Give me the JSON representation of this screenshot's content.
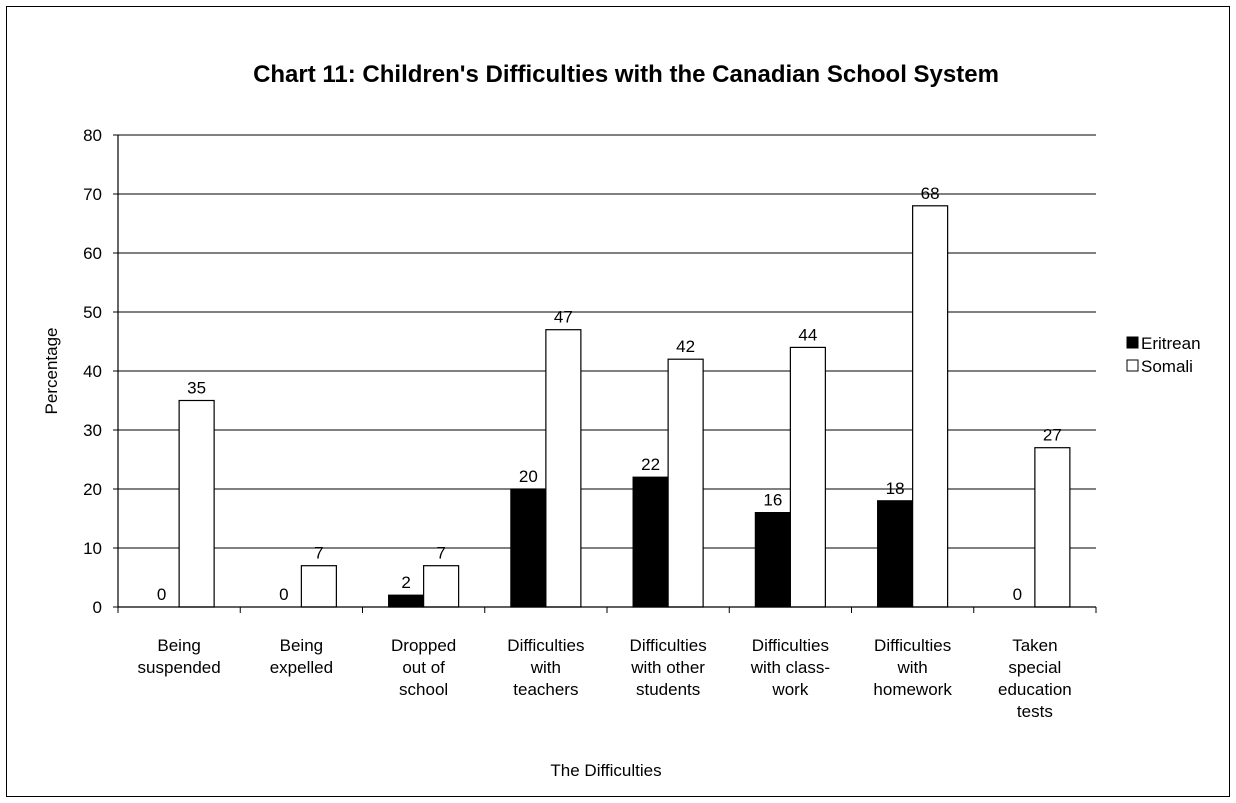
{
  "chart_data": {
    "type": "bar",
    "title": "Chart 11: Children's Difficulties with the Canadian School System",
    "xlabel": "The Difficulties",
    "ylabel": "Percentage",
    "ylim": [
      0,
      80
    ],
    "yticks": [
      0,
      10,
      20,
      30,
      40,
      50,
      60,
      70,
      80
    ],
    "grid": true,
    "legend_position": "right",
    "categories": [
      [
        "Being",
        "suspended"
      ],
      [
        "Being",
        "expelled"
      ],
      [
        "Dropped",
        "out of",
        "school"
      ],
      [
        "Difficulties",
        "with",
        "teachers"
      ],
      [
        "Difficulties",
        "with other",
        "students"
      ],
      [
        "Difficulties",
        "with class-",
        "work"
      ],
      [
        "Difficulties",
        "with",
        "homework"
      ],
      [
        "Taken",
        "special",
        "education",
        "tests"
      ]
    ],
    "series": [
      {
        "name": "Eritrean",
        "color": "#000000",
        "values": [
          0,
          0,
          2,
          20,
          22,
          16,
          18,
          0
        ]
      },
      {
        "name": "Somali",
        "color": "#ffffff",
        "values": [
          35,
          7,
          7,
          47,
          42,
          44,
          68,
          27
        ]
      }
    ]
  }
}
